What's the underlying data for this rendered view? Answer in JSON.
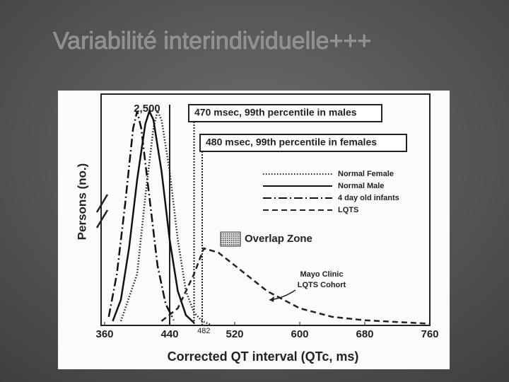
{
  "slide_title": "Variabilité interindividuelle+++",
  "chart_data": {
    "type": "line",
    "xlabel": "Corrected QT interval (QTc, ms)",
    "ylabel": "Persons (no.)",
    "xlim": [
      360,
      760
    ],
    "xticks": [
      360,
      440,
      520,
      600,
      680,
      760
    ],
    "ylim": [
      0,
      2700
    ],
    "yticks": [
      {
        "value": 2500,
        "label": "2,500"
      }
    ],
    "reference_line": 440,
    "marker_label": 482,
    "annotations": [
      {
        "text": "470 msec, 99th percentile in males",
        "x": 470
      },
      {
        "text": "480 msec, 99th percentile in females",
        "x": 480
      }
    ],
    "overlap_label": "Overlap Zone",
    "cohort_label": [
      "Mayo Clinic",
      "LQTS Cohort"
    ],
    "series": [
      {
        "name": "Normal Female",
        "color": "#222222",
        "dash": "1.5 2.5",
        "x": [
          380,
          400,
          410,
          420,
          425,
          430,
          440,
          450,
          460,
          470,
          480,
          490
        ],
        "values": [
          50,
          600,
          1500,
          2300,
          2500,
          2400,
          1800,
          1000,
          400,
          150,
          50,
          10
        ]
      },
      {
        "name": "Normal Male",
        "color": "#111111",
        "dash": "",
        "x": [
          370,
          380,
          390,
          400,
          410,
          415,
          420,
          430,
          440,
          450,
          460,
          470
        ],
        "values": [
          50,
          300,
          900,
          1700,
          2350,
          2500,
          2400,
          1800,
          1000,
          400,
          120,
          30
        ]
      },
      {
        "name": "4 day old infants",
        "color": "#111111",
        "dash": "12 4 2 4",
        "x": [
          365,
          375,
          385,
          395,
          400,
          405,
          415,
          425,
          435,
          445
        ],
        "values": [
          100,
          600,
          1400,
          2300,
          2500,
          2300,
          1500,
          700,
          250,
          60
        ]
      },
      {
        "name": "LQTS",
        "color": "#222222",
        "dash": "8 5",
        "x": [
          430,
          450,
          470,
          482,
          500,
          520,
          560,
          600,
          640,
          680,
          720,
          760
        ],
        "values": [
          50,
          200,
          600,
          900,
          850,
          700,
          400,
          200,
          100,
          60,
          40,
          20
        ]
      }
    ]
  }
}
